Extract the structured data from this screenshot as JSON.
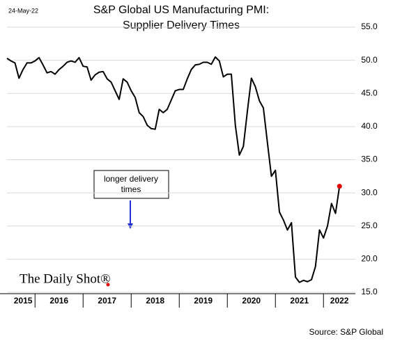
{
  "chart_data": {
    "type": "line",
    "date": "24-May-22",
    "title": [
      "S&P Global US Manufacturing PMI:",
      "Supplier Delivery Times"
    ],
    "annotation": [
      "longer delivery",
      "times"
    ],
    "logo": "The Daily Shot®",
    "source": "Source: S&P Global",
    "xticks": [
      "2015",
      "2016",
      "2017",
      "2018",
      "2019",
      "2020",
      "2021",
      "2022"
    ],
    "series": [
      {
        "color": "#000000",
        "values": [
          50.3,
          49.9,
          49.6,
          47.3,
          48.6,
          49.6,
          49.6,
          49.9,
          50.4,
          49.3,
          48.1,
          48.3,
          47.9,
          48.6,
          49.1,
          49.7,
          49.9,
          49.7,
          50.4,
          49.1,
          49.0,
          47.0,
          47.8,
          48.2,
          48.3,
          47.2,
          46.7,
          45.4,
          44.1,
          47.2,
          46.7,
          45.4,
          44.4,
          42.1,
          41.5,
          40.2,
          39.7,
          39.6,
          42.6,
          42.1,
          42.6,
          44.0,
          45.4,
          45.6,
          45.6,
          47.2,
          48.6,
          49.3,
          49.4,
          49.7,
          49.7,
          49.4,
          50.5,
          49.9,
          47.5,
          47.9,
          47.9,
          40.2,
          35.7,
          37.0,
          42.3,
          47.3,
          46.0,
          43.9,
          42.8,
          37.6,
          32.5,
          33.4,
          27.1,
          25.9,
          24.4,
          25.5,
          17.3,
          16.5,
          16.8,
          16.6,
          16.9,
          18.9,
          24.4,
          23.2,
          25.0,
          28.4,
          26.9,
          31.0
        ]
      }
    ],
    "last_point_color": "#e00000",
    "ylim": [
      15,
      55
    ],
    "yticks": [
      {
        "value": 15,
        "label": "15.0"
      },
      {
        "value": 20,
        "label": "20.0"
      },
      {
        "value": 25,
        "label": "25.0"
      },
      {
        "value": 30,
        "label": "30.0"
      },
      {
        "value": 35,
        "label": "35.0"
      },
      {
        "value": 40,
        "label": "40.0"
      },
      {
        "value": 45,
        "label": "45.0"
      },
      {
        "value": 50,
        "label": "50.0"
      },
      {
        "value": 55,
        "label": "55.0"
      }
    ],
    "grid": true
  }
}
